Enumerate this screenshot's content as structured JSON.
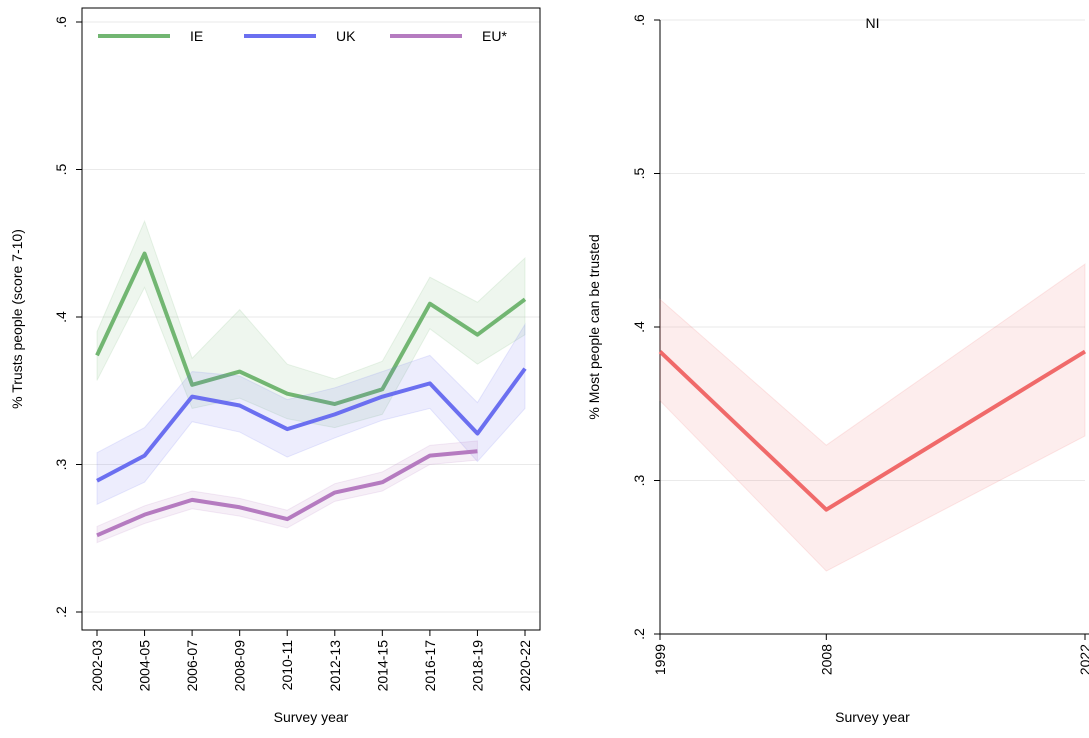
{
  "chart_data": [
    {
      "type": "line",
      "y_label": "% Trusts people (score 7-10)",
      "x_label": "Survey year",
      "categories": [
        "2002-03",
        "2004-05",
        "2006-07",
        "2008-09",
        "2010-11",
        "2012-13",
        "2014-15",
        "2016-17",
        "2018-19",
        "2020-22"
      ],
      "ylim": [
        0.2,
        0.6
      ],
      "yticks": [
        {
          "value": 0.2,
          "label": ".2"
        },
        {
          "value": 0.3,
          "label": ".3"
        },
        {
          "value": 0.4,
          "label": ".4"
        },
        {
          "value": 0.5,
          "label": ".5"
        },
        {
          "value": 0.6,
          "label": ".6"
        }
      ],
      "grid": true,
      "legend": "top",
      "series": [
        {
          "name": "IE",
          "color": "#72b672",
          "values": [
            0.374,
            0.443,
            0.354,
            0.363,
            0.348,
            0.341,
            0.351,
            0.409,
            0.388,
            0.412
          ],
          "lower": [
            0.357,
            0.42,
            0.338,
            0.345,
            0.331,
            0.325,
            0.334,
            0.392,
            0.368,
            0.388
          ],
          "upper": [
            0.39,
            0.465,
            0.372,
            0.405,
            0.368,
            0.358,
            0.37,
            0.427,
            0.41,
            0.44
          ]
        },
        {
          "name": "UK",
          "color": "#6b6ff0",
          "values": [
            0.289,
            0.306,
            0.346,
            0.34,
            0.324,
            0.334,
            0.346,
            0.355,
            0.321,
            0.365
          ],
          "lower": [
            0.273,
            0.288,
            0.329,
            0.322,
            0.305,
            0.318,
            0.33,
            0.338,
            0.302,
            0.338
          ],
          "upper": [
            0.308,
            0.325,
            0.363,
            0.36,
            0.344,
            0.352,
            0.363,
            0.374,
            0.342,
            0.395
          ]
        },
        {
          "name": "EU*",
          "color": "#b57bc0",
          "values": [
            0.252,
            0.266,
            0.276,
            0.271,
            0.263,
            0.281,
            0.288,
            0.306,
            0.309,
            null
          ],
          "lower": [
            0.247,
            0.26,
            0.27,
            0.265,
            0.257,
            0.275,
            0.282,
            0.3,
            0.303,
            null
          ],
          "upper": [
            0.258,
            0.272,
            0.282,
            0.277,
            0.269,
            0.287,
            0.295,
            0.313,
            0.316,
            null
          ]
        }
      ]
    },
    {
      "type": "line",
      "title": "NI",
      "y_label": "% Most people can be trusted",
      "x_label": "Survey year",
      "x": [
        1999,
        2008,
        2022
      ],
      "xlim": [
        1999,
        2022
      ],
      "xticks": [
        1999,
        2008,
        2022
      ],
      "ylim": [
        0.2,
        0.6
      ],
      "yticks": [
        {
          "value": 0.2,
          "label": ".2"
        },
        {
          "value": 0.3,
          "label": ".3"
        },
        {
          "value": 0.4,
          "label": ".4"
        },
        {
          "value": 0.5,
          "label": ".5"
        },
        {
          "value": 0.6,
          "label": ".6"
        }
      ],
      "grid": true,
      "series": [
        {
          "color": "#f06a6a",
          "values": [
            0.384,
            0.281,
            0.384
          ],
          "lower": [
            0.352,
            0.241,
            0.329
          ],
          "upper": [
            0.418,
            0.323,
            0.441
          ]
        }
      ]
    }
  ]
}
